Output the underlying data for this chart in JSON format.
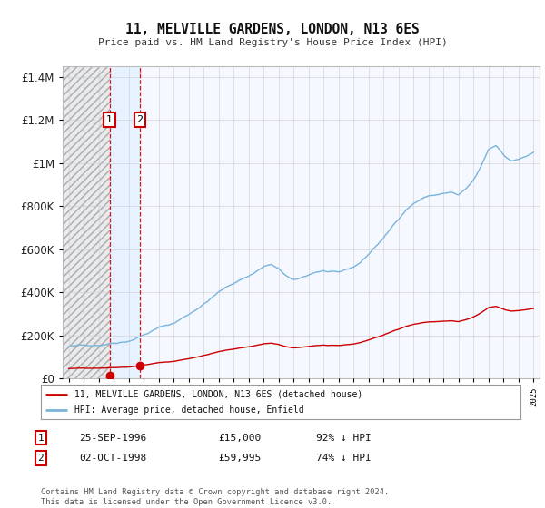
{
  "title": "11, MELVILLE GARDENS, LONDON, N13 6ES",
  "subtitle": "Price paid vs. HM Land Registry's House Price Index (HPI)",
  "legend_label_red": "11, MELVILLE GARDENS, LONDON, N13 6ES (detached house)",
  "legend_label_blue": "HPI: Average price, detached house, Enfield",
  "transaction1": {
    "label": "1",
    "date": "25-SEP-1996",
    "price": 15000,
    "hpi_pct": "92% ↓ HPI",
    "year": 1996.73
  },
  "transaction2": {
    "label": "2",
    "date": "02-OCT-1998",
    "price": 59995,
    "hpi_pct": "74% ↓ HPI",
    "year": 1998.75
  },
  "footer": "Contains HM Land Registry data © Crown copyright and database right 2024.\nThis data is licensed under the Open Government Licence v3.0.",
  "ylim": [
    0,
    1450000
  ],
  "xlim_min": 1993.6,
  "xlim_max": 2025.4,
  "hpi_color": "#7ab4dc",
  "price_color": "#cc0000",
  "background_color": "#ffffff",
  "grid_color": "#cccccc",
  "plot_bg_color": "#f5f8ff",
  "hatch_bg_color": "#d8dde8",
  "blue_fill_color": "#ddeeff"
}
